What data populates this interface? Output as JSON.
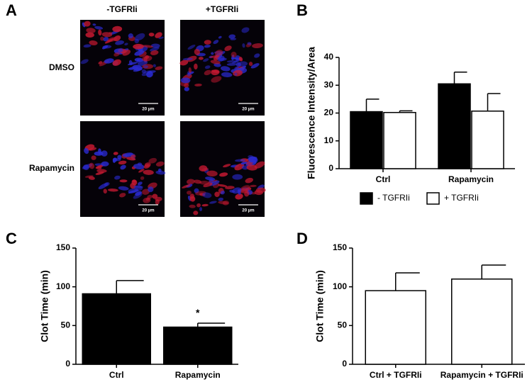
{
  "panel_a": {
    "label": "A",
    "columns": [
      "-TGFRIi",
      "+TGFRIi"
    ],
    "rows": [
      "DMSO",
      "Rapamycin"
    ],
    "scale_bar": "20 µm"
  },
  "chart_data": [
    {
      "type": "bar",
      "panel": "B",
      "ylabel": "Fluorescence Intensity/Area",
      "categories": [
        "Ctrl",
        "Rapamycin"
      ],
      "series": [
        {
          "name": "- TGFRIi",
          "color": "#000000",
          "values": [
            20.5,
            30.5
          ],
          "errors": [
            4.5,
            4.2
          ]
        },
        {
          "name": "+ TGFRIi",
          "color": "#ffffff",
          "values": [
            20.2,
            20.7
          ],
          "errors": [
            0.6,
            6.3
          ]
        }
      ],
      "ylim": [
        0,
        40
      ],
      "yticks": [
        0,
        10,
        20,
        30,
        40
      ]
    },
    {
      "type": "bar",
      "panel": "C",
      "ylabel": "Clot Time (min)",
      "categories": [
        "Ctrl",
        "Rapamycin"
      ],
      "series": [
        {
          "color": "#000000",
          "values": [
            91,
            48
          ],
          "errors": [
            17,
            5
          ]
        }
      ],
      "annotation": "*",
      "ylim": [
        0,
        150
      ],
      "yticks": [
        0,
        50,
        100,
        150
      ]
    },
    {
      "type": "bar",
      "panel": "D",
      "ylabel": "Clot Time (min)",
      "categories": [
        "Ctrl + TGFRIi",
        "Rapamycin + TGFRIi"
      ],
      "series": [
        {
          "color": "#ffffff",
          "values": [
            95,
            110
          ],
          "errors": [
            23,
            18
          ]
        }
      ],
      "ylim": [
        0,
        150
      ],
      "yticks": [
        0,
        50,
        100,
        150
      ]
    }
  ]
}
